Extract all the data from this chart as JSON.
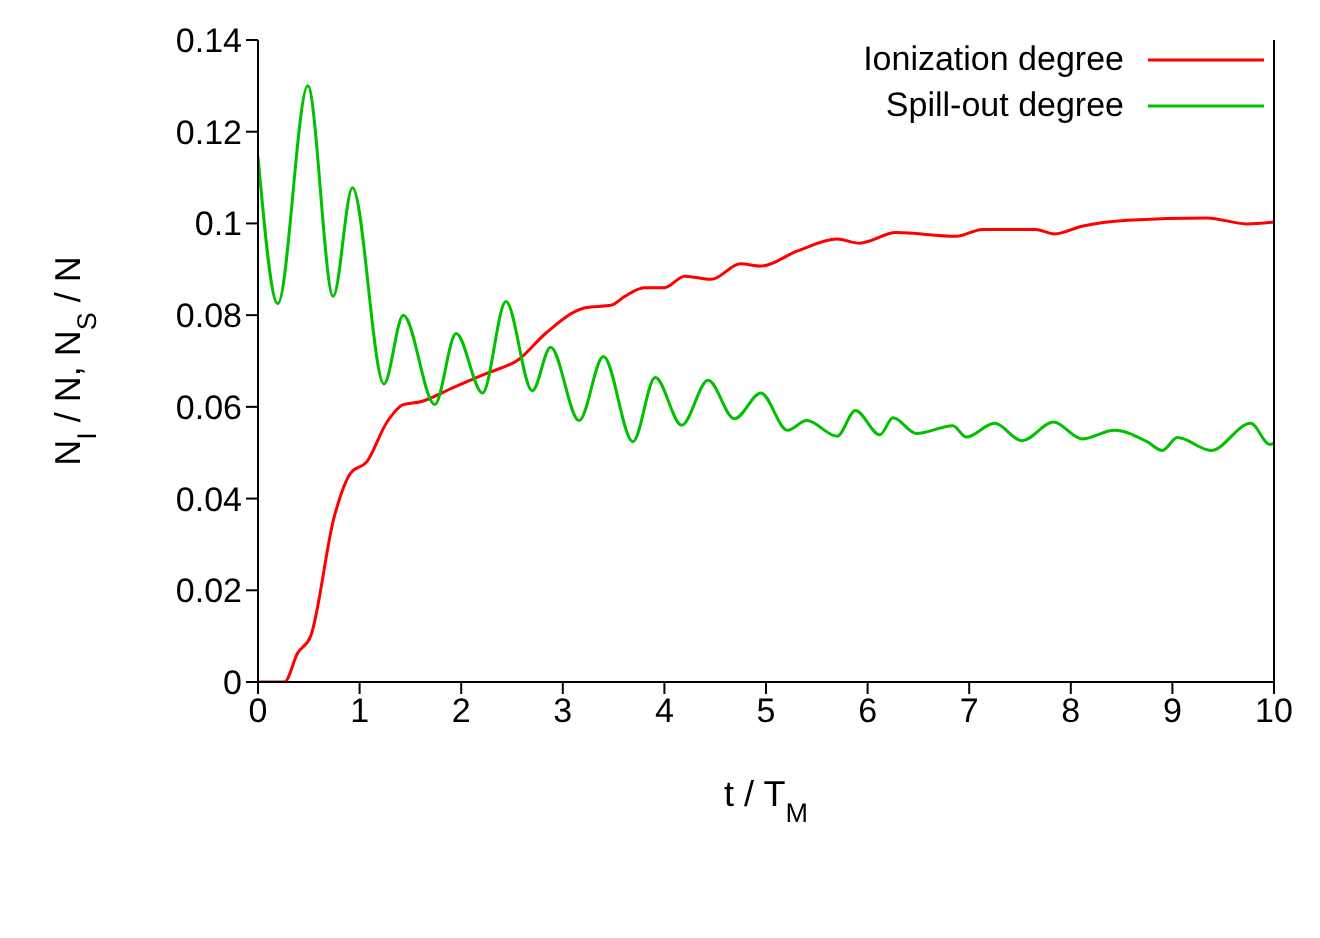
{
  "chart_data": {
    "type": "line",
    "xlabel": "t / T$_{M}$",
    "ylabel": "N$_{I}$ / N,  N$_{S}$ / N",
    "xlim": [
      0,
      10
    ],
    "xticks": [
      0,
      1,
      2,
      3,
      4,
      5,
      6,
      7,
      8,
      9,
      10
    ],
    "ylim": [
      0,
      0.14
    ],
    "yticks": [
      0,
      0.02,
      0.04,
      0.06,
      0.08,
      0.1,
      0.12,
      0.14
    ],
    "grid": false,
    "legend": "top right",
    "marker": "none",
    "line_style": "solid",
    "series": [
      {
        "name": "Ionization degree",
        "color": "#ff0000",
        "x": [
          0,
          0.26,
          0.39,
          0.52,
          0.75,
          0.91,
          1.07,
          1.27,
          1.43,
          1.6,
          1.92,
          2.25,
          2.57,
          2.83,
          3.22,
          3.48,
          3.61,
          3.8,
          4.0,
          4.2,
          4.46,
          4.75,
          4.95,
          5.31,
          5.7,
          5.92,
          6.28,
          6.87,
          7.13,
          7.65,
          7.84,
          8.11,
          8.56,
          9.34,
          9.73,
          10
        ],
        "values": [
          0,
          0,
          0.0063,
          0.0101,
          0.036,
          0.0455,
          0.048,
          0.0567,
          0.0605,
          0.0611,
          0.0642,
          0.0673,
          0.0704,
          0.076,
          0.0816,
          0.0822,
          0.0841,
          0.086,
          0.086,
          0.0885,
          0.0878,
          0.0912,
          0.0907,
          0.094,
          0.0966,
          0.0957,
          0.098,
          0.0972,
          0.0987,
          0.0987,
          0.0977,
          0.0994,
          0.1007,
          0.1012,
          0.0999,
          0.1003
        ]
      },
      {
        "name": "Spill-out degree",
        "color": "#00c000",
        "x": [
          0,
          0.195,
          0.49,
          0.74,
          0.93,
          1.24,
          1.43,
          1.74,
          1.95,
          2.21,
          2.44,
          2.7,
          2.88,
          3.16,
          3.4,
          3.69,
          3.91,
          4.17,
          4.43,
          4.69,
          4.95,
          5.21,
          5.4,
          5.7,
          5.88,
          6.12,
          6.25,
          6.48,
          6.84,
          6.97,
          7.25,
          7.52,
          7.83,
          8.11,
          8.43,
          8.75,
          8.9,
          9.05,
          9.38,
          9.77,
          9.96,
          10
        ],
        "values": [
          0.1146,
          0.0825,
          0.13,
          0.0841,
          0.1078,
          0.065,
          0.08,
          0.0605,
          0.076,
          0.063,
          0.083,
          0.0635,
          0.073,
          0.057,
          0.071,
          0.0524,
          0.0664,
          0.056,
          0.0658,
          0.0574,
          0.063,
          0.0549,
          0.057,
          0.0536,
          0.0592,
          0.0539,
          0.0576,
          0.0542,
          0.0559,
          0.0534,
          0.0564,
          0.0526,
          0.0567,
          0.053,
          0.0549,
          0.0524,
          0.0505,
          0.0533,
          0.0505,
          0.0564,
          0.0518,
          0.052
        ]
      }
    ]
  }
}
